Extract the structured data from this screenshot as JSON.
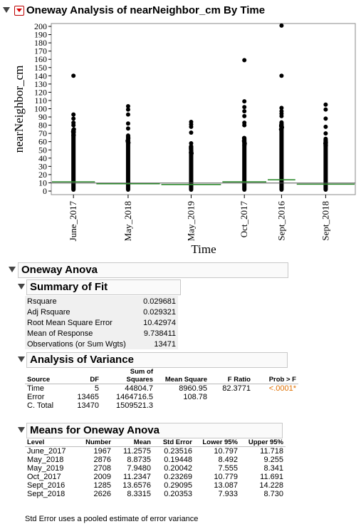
{
  "report_title": "Oneway Analysis of nearNeighbor_cm By Time",
  "chart_data": {
    "type": "scatter",
    "title": "",
    "xlabel": "Time",
    "ylabel": "nearNeighbor_cm",
    "ylim": [
      0,
      200
    ],
    "y_ticks": [
      0,
      10,
      20,
      30,
      40,
      50,
      60,
      70,
      80,
      90,
      100,
      110,
      120,
      130,
      140,
      150,
      160,
      170,
      180,
      190,
      200
    ],
    "categories": [
      "June_2017",
      "May_2018",
      "May_2019",
      "Oct_2017",
      "Sept_2016",
      "Sept_2018"
    ],
    "group_means": [
      11.2575,
      8.8735,
      7.948,
      11.2347,
      13.6576,
      8.3315
    ],
    "group_counts": [
      1967,
      2876,
      2708,
      2009,
      1285,
      2626
    ],
    "grand_mean": 9.738411,
    "continuous_max": [
      77,
      70,
      57,
      67,
      86,
      66
    ],
    "outliers": [
      [
        140,
        93,
        88,
        83,
        80
      ],
      [
        103,
        99,
        93,
        82,
        76
      ],
      [
        84,
        81,
        78,
        71,
        58
      ],
      [
        159,
        109,
        102,
        97,
        91,
        83,
        80
      ],
      [
        201,
        140,
        101,
        97,
        94,
        91
      ],
      [
        105,
        99,
        88,
        78,
        70
      ]
    ],
    "grid": false,
    "legend": "none",
    "mark_color": "#000000",
    "mean_line_color": "#2e8b2e",
    "grand_mean_color": "#555555"
  },
  "oneway_anova": {
    "title": "Oneway Anova",
    "summary_of_fit": {
      "title": "Summary of Fit",
      "rows": [
        {
          "label": "Rsquare",
          "value": "0.029681"
        },
        {
          "label": "Adj Rsquare",
          "value": "0.029321"
        },
        {
          "label": "Root Mean Square Error",
          "value": "10.42974"
        },
        {
          "label": "Mean of Response",
          "value": "9.738411"
        },
        {
          "label": "Observations (or Sum Wgts)",
          "value": "13471"
        }
      ]
    },
    "analysis_of_variance": {
      "title": "Analysis of Variance",
      "headers": {
        "source": "Source",
        "df": "DF",
        "ss_top": "Sum of",
        "ss": "Squares",
        "ms": "Mean Square",
        "f": "F Ratio",
        "p": "Prob > F"
      },
      "rows": [
        {
          "source": "Time",
          "df": "5",
          "ss": "44804.7",
          "ms": "8960.95",
          "f": "82.3771",
          "p": "<.0001*"
        },
        {
          "source": "Error",
          "df": "13465",
          "ss": "1464716.5",
          "ms": "108.78",
          "f": "",
          "p": ""
        },
        {
          "source": "C. Total",
          "df": "13470",
          "ss": "1509521.3",
          "ms": "",
          "f": "",
          "p": ""
        }
      ]
    },
    "means": {
      "title": "Means for Oneway Anova",
      "headers": {
        "level": "Level",
        "number": "Number",
        "mean": "Mean",
        "se": "Std Error",
        "lower": "Lower 95%",
        "upper": "Upper 95%"
      },
      "rows": [
        {
          "level": "June_2017",
          "number": "1967",
          "mean": "11.2575",
          "se": "0.23516",
          "lower": "10.797",
          "upper": "11.718"
        },
        {
          "level": "May_2018",
          "number": "2876",
          "mean": "8.8735",
          "se": "0.19448",
          "lower": "8.492",
          "upper": "9.255"
        },
        {
          "level": "May_2019",
          "number": "2708",
          "mean": "7.9480",
          "se": "0.20042",
          "lower": "7.555",
          "upper": "8.341"
        },
        {
          "level": "Oct_2017",
          "number": "2009",
          "mean": "11.2347",
          "se": "0.23269",
          "lower": "10.779",
          "upper": "11.691"
        },
        {
          "level": "Sept_2016",
          "number": "1285",
          "mean": "13.6576",
          "se": "0.29095",
          "lower": "13.087",
          "upper": "14.228"
        },
        {
          "level": "Sept_2018",
          "number": "2626",
          "mean": "8.3315",
          "se": "0.20353",
          "lower": "7.933",
          "upper": "8.730"
        }
      ],
      "footnote": "Std Error uses a pooled estimate of error variance"
    }
  }
}
